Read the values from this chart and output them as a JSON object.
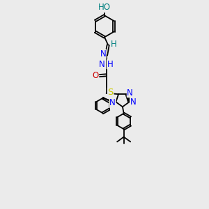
{
  "bg_color": "#ebebeb",
  "atom_colors": {
    "C": "#000000",
    "N": "#0000ff",
    "O": "#cc0000",
    "S": "#cccc00",
    "H": "#008080"
  },
  "bond_color": "#000000",
  "figsize": [
    3.0,
    3.0
  ],
  "dpi": 100
}
